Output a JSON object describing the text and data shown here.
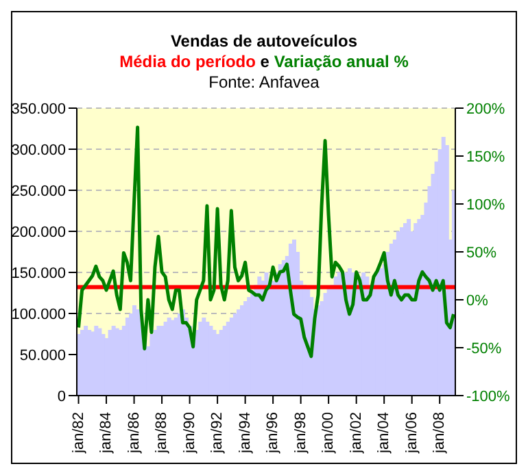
{
  "chart_data": {
    "type": "bar",
    "title": "Vendas de autoveículos",
    "subtitle": "e",
    "annotations": [
      "Fonte: Anfavea"
    ],
    "categories": [
      "jan/82",
      null,
      null,
      null,
      null,
      null,
      null,
      null,
      "jan/84",
      null,
      null,
      null,
      null,
      null,
      null,
      null,
      "jan/86",
      null,
      null,
      null,
      null,
      null,
      null,
      null,
      "jan/88",
      null,
      null,
      null,
      null,
      null,
      null,
      null,
      "jan/90",
      null,
      null,
      null,
      null,
      null,
      null,
      null,
      "jan/92",
      null,
      null,
      null,
      null,
      null,
      null,
      null,
      "jan/94",
      null,
      null,
      null,
      null,
      null,
      null,
      null,
      "jan/96",
      null,
      null,
      null,
      null,
      null,
      null,
      null,
      "jan/98",
      null,
      null,
      null,
      null,
      null,
      null,
      null,
      "jan/00",
      null,
      null,
      null,
      null,
      null,
      null,
      null,
      "jan/02",
      null,
      null,
      null,
      null,
      null,
      null,
      null,
      "jan/04",
      null,
      null,
      null,
      null,
      null,
      null,
      null,
      "jan/06",
      null,
      null,
      null,
      null,
      null,
      null,
      null,
      "jan/08",
      null,
      null,
      null,
      null
    ],
    "series": [
      {
        "axis": "y",
        "color": "#ccccff",
        "values": [
          75000,
          80000,
          85000,
          80000,
          78000,
          85000,
          82000,
          75000,
          70000,
          80000,
          85000,
          82000,
          80000,
          85000,
          95000,
          100000,
          110000,
          105000,
          95000,
          70000,
          60000,
          75000,
          80000,
          85000,
          85000,
          90000,
          95000,
          92000,
          95000,
          100000,
          105000,
          95000,
          85000,
          65000,
          80000,
          90000,
          95000,
          90000,
          85000,
          80000,
          75000,
          80000,
          85000,
          90000,
          95000,
          100000,
          105000,
          110000,
          115000,
          120000,
          125000,
          135000,
          145000,
          140000,
          150000,
          135000,
          140000,
          150000,
          160000,
          165000,
          170000,
          185000,
          190000,
          175000,
          140000,
          135000,
          130000,
          120000,
          105000,
          110000,
          115000,
          125000,
          130000,
          135000,
          145000,
          150000,
          145000,
          150000,
          155000,
          150000,
          140000,
          145000,
          150000,
          145000,
          135000,
          140000,
          150000,
          155000,
          160000,
          175000,
          185000,
          190000,
          200000,
          205000,
          210000,
          215000,
          200000,
          210000,
          215000,
          220000,
          235000,
          255000,
          270000,
          285000,
          300000,
          315000,
          305000,
          190000,
          250000
        ]
      },
      {
        "type": "line",
        "name": "Variação anual %",
        "axis": "y2",
        "color": "#008000",
        "values": [
          -29,
          10,
          15,
          20,
          25,
          35,
          24,
          20,
          10,
          20,
          30,
          5,
          -10,
          49,
          39,
          20,
          102,
          180,
          -10,
          -51,
          0,
          -34,
          34,
          66,
          29,
          24,
          0,
          -10,
          10,
          10,
          -24,
          -24,
          -29,
          -49,
          0,
          10,
          20,
          98,
          0,
          10,
          95,
          15,
          0,
          20,
          93,
          34,
          20,
          25,
          39,
          10,
          8,
          5,
          5,
          0,
          10,
          15,
          34,
          20,
          29,
          30,
          37,
          10,
          -15,
          -18,
          -20,
          -39,
          -49,
          -59,
          -20,
          5,
          98,
          166,
          88,
          24,
          39,
          35,
          29,
          0,
          -15,
          -5,
          29,
          20,
          0,
          0,
          5,
          24,
          30,
          39,
          49,
          20,
          5,
          20,
          5,
          0,
          5,
          5,
          0,
          0,
          20,
          29,
          24,
          20,
          10,
          20,
          10,
          20,
          -24,
          -29,
          -15
        ]
      }
    ],
    "ylim": [
      0,
      350000
    ],
    "yticks": [
      {
        "value": 0,
        "label": "0"
      },
      {
        "value": 50000,
        "label": "50.000"
      },
      {
        "value": 100000,
        "label": "100.000"
      },
      {
        "value": 150000,
        "label": "150.000"
      },
      {
        "value": 200000,
        "label": "200.000"
      },
      {
        "value": 250000,
        "label": "250.000"
      },
      {
        "value": 300000,
        "label": "300.000"
      },
      {
        "value": 350000,
        "label": "350.000"
      }
    ],
    "y2lim": [
      -100,
      200
    ],
    "y2ticks": [
      {
        "value": -100,
        "label": "-100%"
      },
      {
        "value": -50,
        "label": "-50%"
      },
      {
        "value": 0,
        "label": "0%"
      },
      {
        "value": 50,
        "label": "50%"
      },
      {
        "value": 100,
        "label": "100%"
      },
      {
        "value": 150,
        "label": "150%"
      },
      {
        "value": 200,
        "label": "200%"
      }
    ],
    "ref_lines": [
      {
        "axis": "y",
        "value": 132000,
        "label": "Média do período",
        "color": "#ff0000"
      }
    ],
    "grid": "y",
    "marker": "none",
    "line_style": "solid"
  }
}
